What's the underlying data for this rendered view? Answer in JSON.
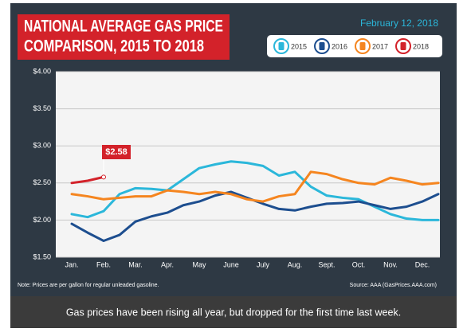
{
  "chart_data": {
    "type": "line",
    "title": [
      "NATIONAL AVERAGE GAS PRICE",
      "COMPARISON, 2015 TO 2018"
    ],
    "date": "February 12, 2018",
    "note": "Note: Prices are per gallon for regular unleaded gasoline.",
    "source": "Source: AAA (GasPrices.AAA.com)",
    "categories": [
      "Jan.",
      null,
      "Feb.",
      null,
      "Mar.",
      null,
      "Apr.",
      null,
      "May",
      null,
      "June",
      null,
      "July",
      null,
      "Aug.",
      null,
      "Sept.",
      null,
      "Oct.",
      null,
      "Nov.",
      null,
      "Dec.",
      null
    ],
    "ylim": [
      1.5,
      4.0
    ],
    "yticks": [
      {
        "value": 1.5,
        "label": "$1.50"
      },
      {
        "value": 2.0,
        "label": "$2.00"
      },
      {
        "value": 2.5,
        "label": "$2.50"
      },
      {
        "value": 3.0,
        "label": "$3.00"
      },
      {
        "value": 3.5,
        "label": "$3.50"
      },
      {
        "value": 4.0,
        "label": "$4.00"
      }
    ],
    "grid": true,
    "series": [
      {
        "name": "2015",
        "color": "#2bb7da",
        "values": [
          2.08,
          2.04,
          2.12,
          2.35,
          2.43,
          2.42,
          2.4,
          2.55,
          2.7,
          2.75,
          2.79,
          2.77,
          2.73,
          2.6,
          2.65,
          2.45,
          2.33,
          2.3,
          2.28,
          2.18,
          2.08,
          2.02,
          2.0,
          2.0
        ]
      },
      {
        "name": "2016",
        "color": "#1d4e8f",
        "values": [
          1.95,
          1.83,
          1.72,
          1.8,
          1.98,
          2.05,
          2.1,
          2.2,
          2.25,
          2.33,
          2.38,
          2.3,
          2.22,
          2.15,
          2.13,
          2.18,
          2.22,
          2.23,
          2.25,
          2.2,
          2.15,
          2.18,
          2.25,
          2.35
        ]
      },
      {
        "name": "2017",
        "color": "#f5851f",
        "values": [
          2.35,
          2.32,
          2.28,
          2.3,
          2.32,
          2.32,
          2.4,
          2.38,
          2.35,
          2.38,
          2.35,
          2.28,
          2.25,
          2.32,
          2.35,
          2.65,
          2.62,
          2.55,
          2.5,
          2.48,
          2.57,
          2.53,
          2.48,
          2.5
        ]
      },
      {
        "name": "2018",
        "color": "#d3222a",
        "values": [
          2.5,
          2.53,
          2.58,
          null,
          null,
          null,
          null,
          null,
          null,
          null,
          null,
          null,
          null,
          null,
          null,
          null,
          null,
          null,
          null,
          null,
          null,
          null,
          null,
          null
        ],
        "value_labels": [
          null,
          null,
          "$2.58",
          null,
          null,
          null,
          null,
          null,
          null,
          null,
          null,
          null,
          null,
          null,
          null,
          null,
          null,
          null,
          null,
          null,
          null,
          null,
          null,
          null
        ]
      }
    ]
  },
  "caption": "Gas prices have been rising all year, but dropped for the first time last week."
}
